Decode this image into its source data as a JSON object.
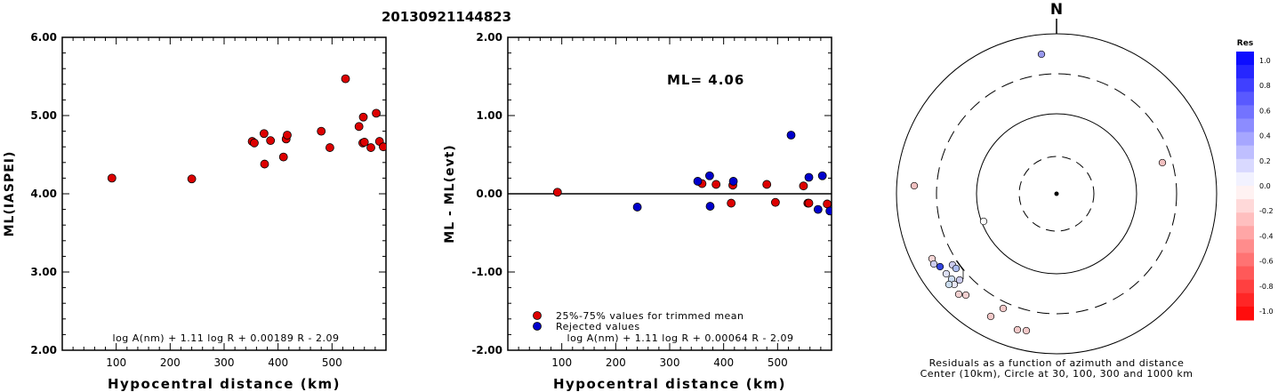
{
  "figure_title": "20130921144823",
  "colors": {
    "used": "#dd0000",
    "rejected": "#0000cc",
    "axis": "#000000"
  },
  "chart_data": [
    {
      "type": "scatter",
      "xlabel": "Hypocentral distance (km)",
      "ylabel": "ML(IASPEI)",
      "xlim": [
        0,
        600
      ],
      "ylim": [
        2.0,
        6.0
      ],
      "xticks": [
        100,
        200,
        300,
        400,
        500
      ],
      "yticks": [
        "2.00",
        "3.00",
        "4.00",
        "5.00",
        "6.00"
      ],
      "yticks_values": [
        2,
        3,
        4,
        5,
        6
      ],
      "formula": "log A(nm) + 1.11 log R + 0.00189 R - 2.09",
      "series": [
        {
          "color": "#dd0000",
          "points": [
            [
              92,
              4.2
            ],
            [
              240,
              4.19
            ],
            [
              352,
              4.67
            ],
            [
              356,
              4.65
            ],
            [
              374,
              4.77
            ],
            [
              375,
              4.38
            ],
            [
              386,
              4.68
            ],
            [
              410,
              4.47
            ],
            [
              415,
              4.7
            ],
            [
              417,
              4.75
            ],
            [
              480,
              4.8
            ],
            [
              496,
              4.59
            ],
            [
              525,
              5.47
            ],
            [
              550,
              4.86
            ],
            [
              557,
              4.65
            ],
            [
              558,
              4.98
            ],
            [
              560,
              4.66
            ],
            [
              572,
              4.59
            ],
            [
              582,
              5.03
            ],
            [
              588,
              4.67
            ],
            [
              595,
              4.6
            ]
          ]
        }
      ]
    },
    {
      "type": "scatter",
      "xlabel": "Hypocentral distance (km)",
      "ylabel": "ML - ML(evt)",
      "xlim": [
        0,
        600
      ],
      "ylim": [
        -2.0,
        2.0
      ],
      "xticks": [
        100,
        200,
        300,
        400,
        500
      ],
      "yticks": [
        "-2.00",
        "-1.00",
        "0.00",
        "1.00",
        "2.00"
      ],
      "yticks_values": [
        -2,
        -1,
        0,
        1,
        2
      ],
      "ml_label": "ML= 4.06",
      "formula": "log A(nm) + 1.11 log R + 0.00064 R - 2.09",
      "legend": [
        "25%-75% values for trimmed mean",
        "Rejected values"
      ],
      "series": [
        {
          "color": "#dd0000",
          "points": [
            [
              92,
              0.02
            ],
            [
              360,
              0.13
            ],
            [
              386,
              0.12
            ],
            [
              414,
              -0.12
            ],
            [
              417,
              0.11
            ],
            [
              480,
              0.12
            ],
            [
              496,
              -0.11
            ],
            [
              548,
              0.1
            ],
            [
              556,
              -0.12
            ],
            [
              558,
              -0.12
            ],
            [
              592,
              -0.13
            ]
          ]
        },
        {
          "color": "#0000cc",
          "points": [
            [
              240,
              -0.17
            ],
            [
              352,
              0.16
            ],
            [
              374,
              0.23
            ],
            [
              375,
              -0.16
            ],
            [
              418,
              0.16
            ],
            [
              525,
              0.75
            ],
            [
              558,
              0.21
            ],
            [
              575,
              -0.2
            ],
            [
              583,
              0.23
            ],
            [
              597,
              -0.22
            ]
          ]
        }
      ]
    }
  ],
  "polar": {
    "north_label": "N",
    "caption_line1": "Residuals as a function of azimuth and distance",
    "caption_line2": "Center (10km), Circle at 30, 100, 300 and 1000 km"
  },
  "colorbar": {
    "title": "Res",
    "labels": [
      "1.0",
      "0.8",
      "0.6",
      "0.4",
      "0.2",
      "0.0",
      "-0.2",
      "-0.4",
      "-0.6",
      "-0.8",
      "-1.0"
    ],
    "top_color": "#0000ff",
    "bottom_color": "#ff0000"
  }
}
